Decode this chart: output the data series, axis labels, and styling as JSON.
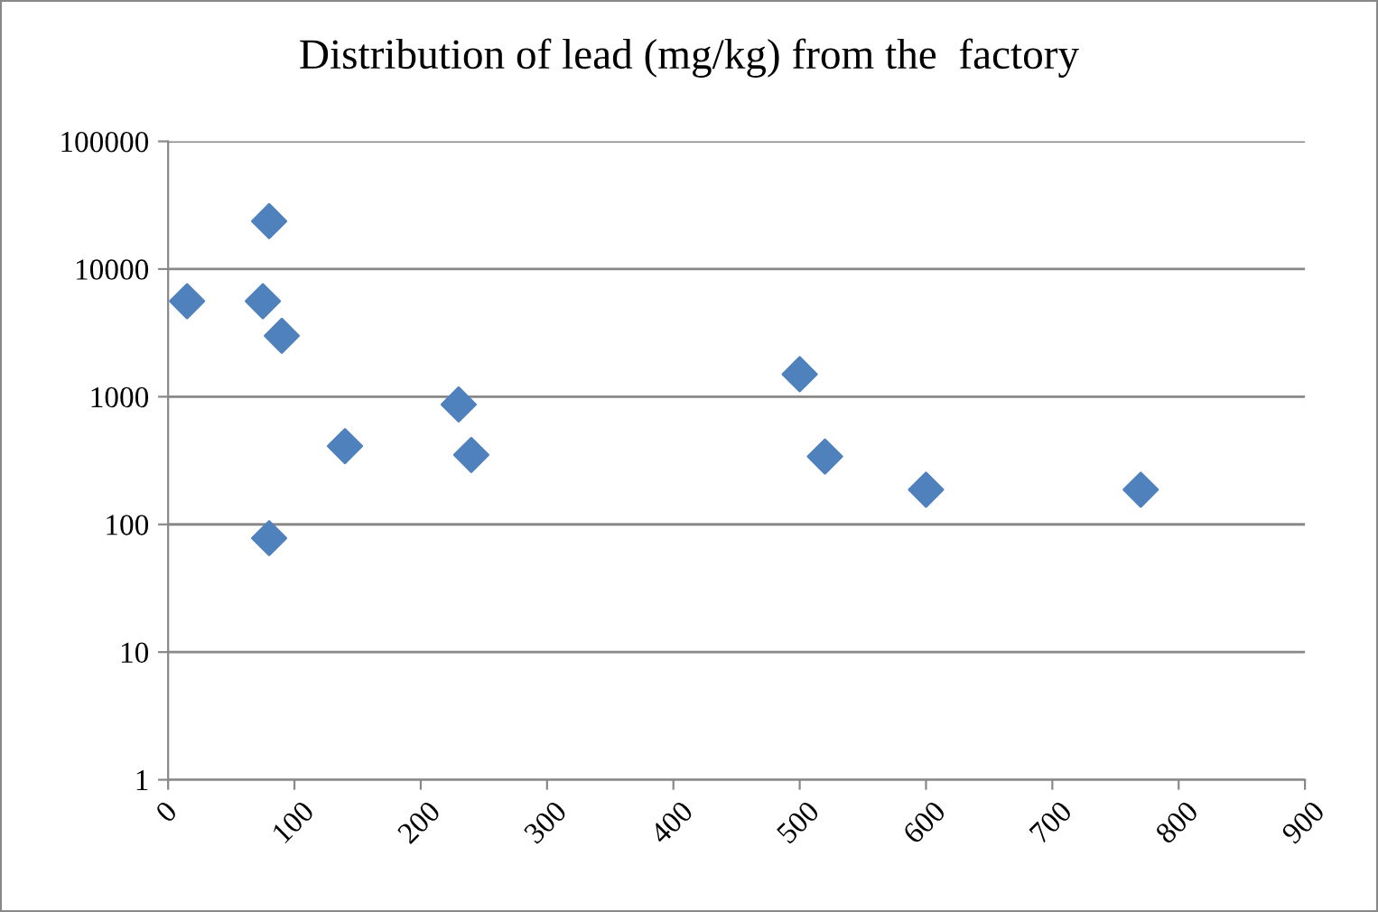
{
  "chart_data": {
    "type": "scatter",
    "title": "Distribution of lead (mg/kg) from the  factory",
    "x": [
      15,
      80,
      75,
      90,
      80,
      140,
      230,
      240,
      500,
      520,
      600,
      770
    ],
    "series": [
      {
        "color": "#4f81bd",
        "values": [
          5600,
          23700,
          5600,
          3000,
          78,
          410,
          870,
          350,
          1500,
          340,
          187,
          187
        ]
      }
    ],
    "log": "y",
    "xlim": [
      0,
      900
    ],
    "xticks": [
      0,
      100,
      200,
      300,
      400,
      500,
      600,
      700,
      800,
      900
    ],
    "ylim": [
      1,
      100000
    ],
    "yticks": [
      1,
      10,
      100,
      1000,
      10000,
      100000
    ],
    "grid": "y",
    "marker": "diamond",
    "legend": false
  }
}
